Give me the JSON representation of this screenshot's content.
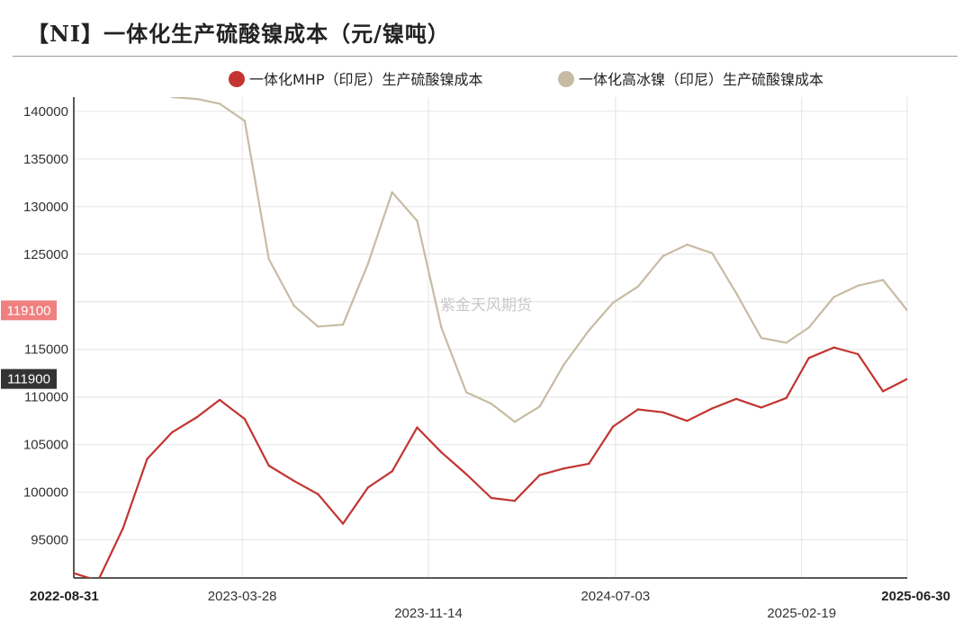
{
  "title": "【NI】一体化生产硫酸镍成本（元/镍吨）",
  "watermark": "紫金天风期货",
  "colors": {
    "series1": "#c23531",
    "series2": "#c8bba4",
    "grid": "#e4e4e4",
    "axis": "#222222",
    "tag1_bg": "#333333",
    "tag2_bg": "#f08080"
  },
  "chart_data": {
    "type": "line",
    "ylim": [
      91000,
      141500
    ],
    "xlim": [
      "2022-08-31",
      "2025-06-30"
    ],
    "y_ticks": [
      95000,
      100000,
      105000,
      110000,
      115000,
      120000,
      125000,
      130000,
      135000,
      140000
    ],
    "y_tick_labels": [
      "95000",
      "100000",
      "105000",
      "110000",
      "115000",
      "",
      "125000",
      "130000",
      "135000",
      "140000"
    ],
    "x_ticks": [
      {
        "date": "2022-08-31",
        "label": "2022-08-31",
        "row": 0,
        "bold": true
      },
      {
        "date": "2023-03-28",
        "label": "2023-03-28",
        "row": 0,
        "bold": false
      },
      {
        "date": "2023-11-14",
        "label": "2023-11-14",
        "row": 1,
        "bold": false
      },
      {
        "date": "2024-07-03",
        "label": "2024-07-03",
        "row": 0,
        "bold": false
      },
      {
        "date": "2025-02-19",
        "label": "2025-02-19",
        "row": 1,
        "bold": false
      },
      {
        "date": "2025-06-30",
        "label": "2025-06-30",
        "row": 0,
        "bold": true
      }
    ],
    "legend_position": "top",
    "grid": true,
    "series": [
      {
        "name": "一体化MHP（印尼）生产硫酸镍成本",
        "color": "#c23531",
        "x": [
          "2022-08-31",
          "2022-09-30",
          "2022-10-31",
          "2022-11-30",
          "2022-12-31",
          "2023-01-31",
          "2023-02-28",
          "2023-03-31",
          "2023-04-30",
          "2023-05-31",
          "2023-06-30",
          "2023-07-31",
          "2023-08-31",
          "2023-09-30",
          "2023-10-31",
          "2023-11-30",
          "2023-12-31",
          "2024-01-31",
          "2024-02-29",
          "2024-03-31",
          "2024-04-30",
          "2024-05-31",
          "2024-06-30",
          "2024-07-31",
          "2024-08-31",
          "2024-09-30",
          "2024-10-31",
          "2024-11-30",
          "2024-12-31",
          "2025-01-31",
          "2025-02-28",
          "2025-03-31",
          "2025-04-30",
          "2025-05-31",
          "2025-06-30"
        ],
        "y": [
          91500,
          90700,
          96200,
          103500,
          106300,
          107900,
          109700,
          107700,
          102800,
          101200,
          99800,
          96700,
          100500,
          102200,
          106800,
          104200,
          101900,
          99400,
          99100,
          101800,
          102500,
          103000,
          106900,
          108700,
          108400,
          107500,
          108800,
          109800,
          108900,
          109900,
          114100,
          115200,
          114500,
          110600,
          111900
        ]
      },
      {
        "name": "一体化高冰镍（印尼）生产硫酸镍成本",
        "color": "#c8bba4",
        "x": [
          "2022-12-31",
          "2023-01-31",
          "2023-02-28",
          "2023-03-31",
          "2023-04-30",
          "2023-05-31",
          "2023-06-30",
          "2023-07-31",
          "2023-08-31",
          "2023-09-30",
          "2023-10-31",
          "2023-11-30",
          "2023-12-31",
          "2024-01-31",
          "2024-02-29",
          "2024-03-31",
          "2024-04-30",
          "2024-05-31",
          "2024-06-30",
          "2024-07-31",
          "2024-08-31",
          "2024-09-30",
          "2024-10-31",
          "2024-11-30",
          "2024-12-31",
          "2025-01-31",
          "2025-02-28",
          "2025-03-31",
          "2025-04-30",
          "2025-05-31",
          "2025-06-30"
        ],
        "y": [
          141500,
          141300,
          140800,
          139000,
          124500,
          119600,
          117400,
          117600,
          124000,
          131500,
          128500,
          117300,
          110500,
          109300,
          107400,
          109000,
          113400,
          117000,
          119900,
          121600,
          124800,
          126000,
          125100,
          120900,
          116200,
          115700,
          117300,
          120500,
          121700,
          122300,
          119100
        ]
      }
    ],
    "end_tags": [
      {
        "label": "111900",
        "series": 0
      },
      {
        "label": "119100",
        "series": 1
      }
    ]
  }
}
